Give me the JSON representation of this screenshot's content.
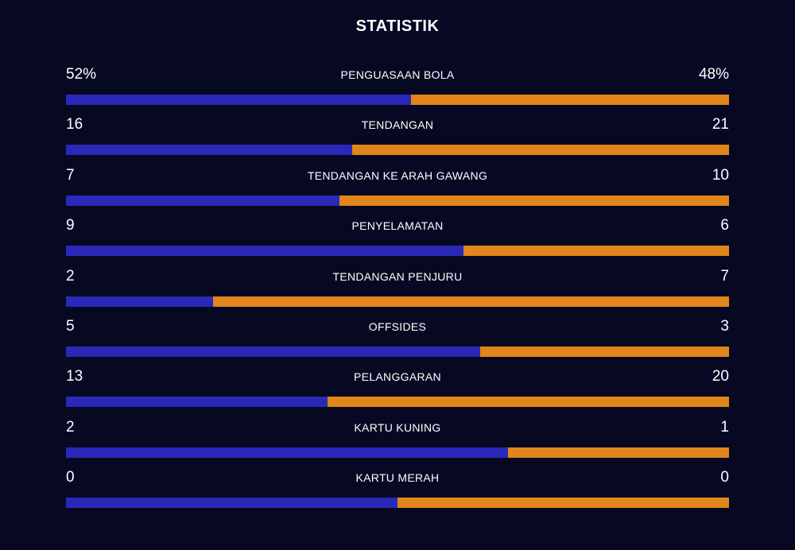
{
  "title": "STATISTIK",
  "colors": {
    "background": "#070923",
    "left_team": "#2a28b8",
    "right_team": "#e0861a",
    "text": "#ffffff"
  },
  "stats": [
    {
      "label": "PENGUASAAN BOLA",
      "left": "52%",
      "right": "48%",
      "left_share": 0.52
    },
    {
      "label": "TENDANGAN",
      "left": "16",
      "right": "21",
      "left_share": 0.432
    },
    {
      "label": "TENDANGAN KE ARAH GAWANG",
      "left": "7",
      "right": "10",
      "left_share": 0.412
    },
    {
      "label": "PENYELAMATAN",
      "left": "9",
      "right": "6",
      "left_share": 0.6
    },
    {
      "label": "TENDANGAN PENJURU",
      "left": "2",
      "right": "7",
      "left_share": 0.222
    },
    {
      "label": "OFFSIDES",
      "left": "5",
      "right": "3",
      "left_share": 0.625
    },
    {
      "label": "PELANGGARAN",
      "left": "13",
      "right": "20",
      "left_share": 0.394
    },
    {
      "label": "KARTU KUNING",
      "left": "2",
      "right": "1",
      "left_share": 0.667
    },
    {
      "label": "KARTU MERAH",
      "left": "0",
      "right": "0",
      "left_share": 0.5
    }
  ]
}
